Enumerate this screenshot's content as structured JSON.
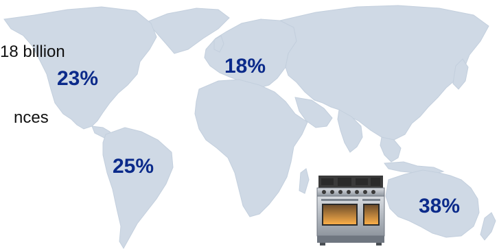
{
  "text_lines": {
    "line1": "18 billion",
    "line2": "nces"
  },
  "regions": {
    "north_america": "23%",
    "europe": "18%",
    "south_america": "25%",
    "australia": "38%"
  },
  "colors": {
    "map": "#cfd9e5",
    "percent": "#0b2a8a",
    "text": "#111111"
  },
  "icons": {
    "world_map": "world-map",
    "product": "kitchen-range-cooker"
  }
}
